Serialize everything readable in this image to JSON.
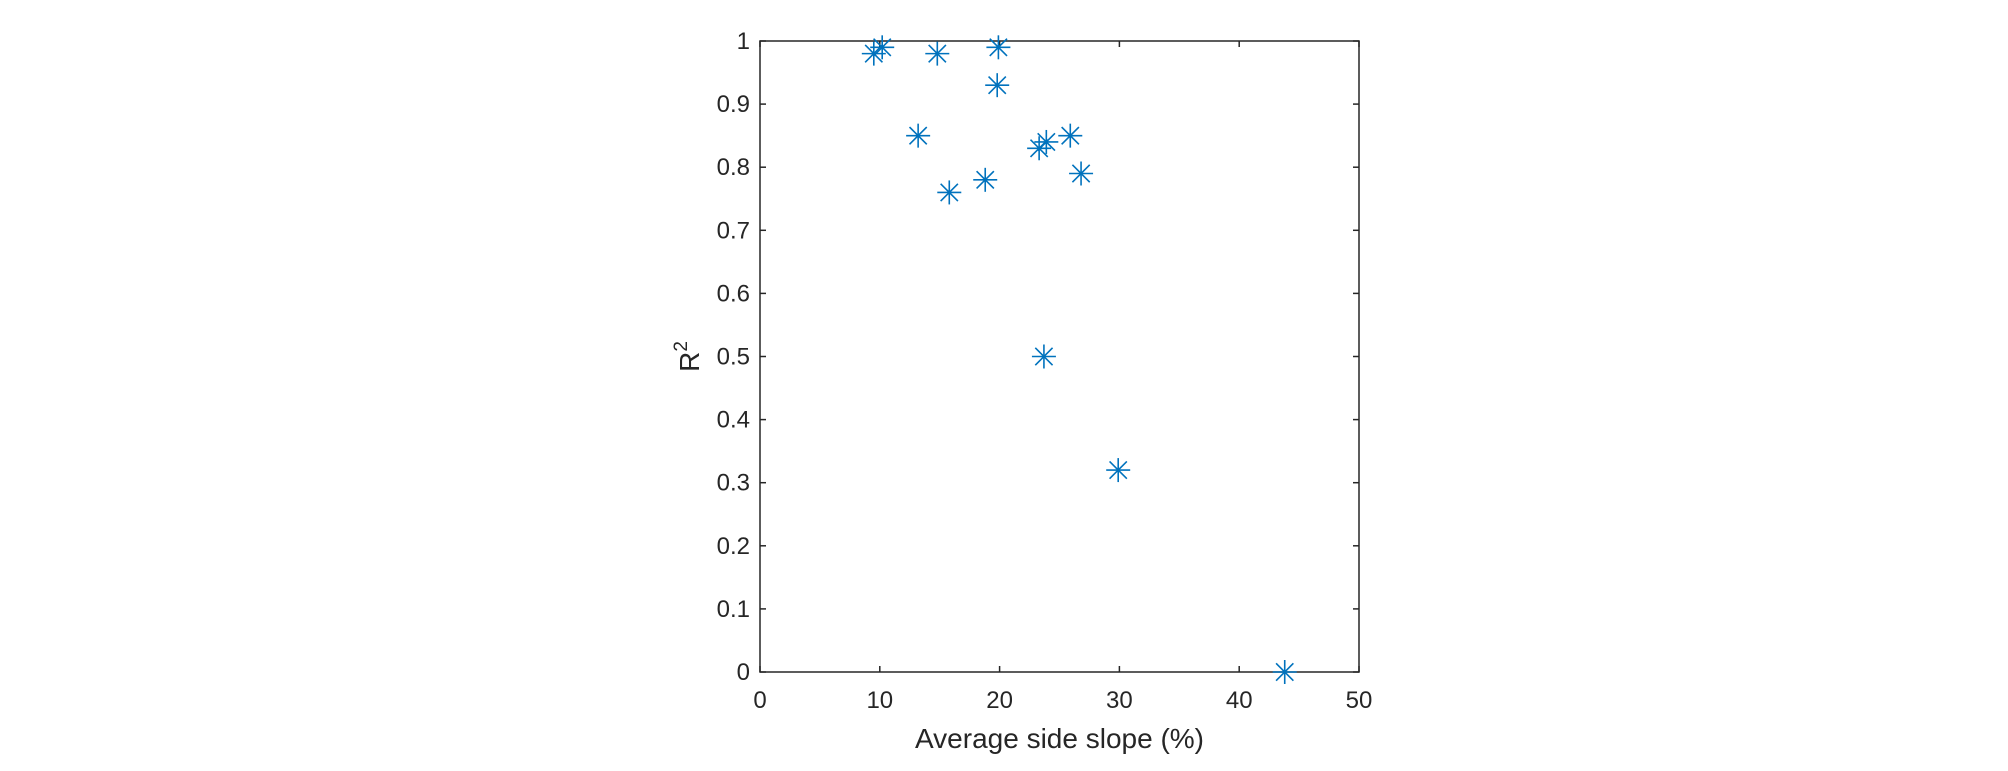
{
  "chart_data": {
    "type": "scatter",
    "title": "",
    "xlabel": "Average side slope (%)",
    "ylabel_base": "R",
    "ylabel_sup": "2",
    "xlim": [
      0,
      50
    ],
    "ylim": [
      0,
      1
    ],
    "xticks": [
      "0",
      "10",
      "20",
      "30",
      "40",
      "50"
    ],
    "yticks": [
      "0",
      "0.1",
      "0.2",
      "0.3",
      "0.4",
      "0.5",
      "0.6",
      "0.7",
      "0.8",
      "0.9",
      "1"
    ],
    "grid": false,
    "marker": "asterisk",
    "marker_color": "#0072BD",
    "series": [
      {
        "x": [
          9.5,
          10.2,
          14.8,
          19.9,
          19.8,
          13.2,
          15.8,
          18.8,
          23.3,
          23.9,
          25.9,
          26.8,
          23.7,
          29.9,
          43.8
        ],
        "y": [
          0.98,
          0.99,
          0.98,
          0.99,
          0.93,
          0.85,
          0.76,
          0.78,
          0.83,
          0.84,
          0.85,
          0.79,
          0.5,
          0.32,
          0.0
        ]
      }
    ]
  }
}
